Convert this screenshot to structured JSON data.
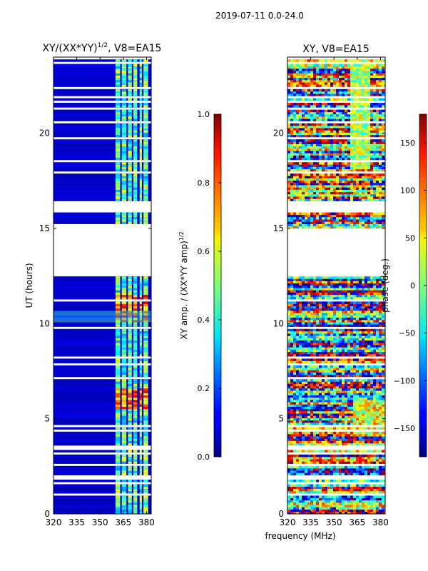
{
  "figure": {
    "suptitle": "2019-07-11 0.0-24.0",
    "xlabel": "frequency (MHz)",
    "ylabel": "UT (hours)"
  },
  "colors": {
    "background": "#ffffff",
    "frame": "#000000",
    "gap": "#ffffff"
  },
  "chart_data": [
    {
      "type": "heatmap",
      "title_prefix": "XY/(XX*YY)",
      "title_exp": "1/2",
      "title_suffix": ", V8=EA15",
      "xlim": [
        320,
        383
      ],
      "ylim": [
        0,
        24
      ],
      "xticks": [
        "320",
        "335",
        "350",
        "365",
        "380"
      ],
      "xtick_values": [
        320,
        335,
        350,
        365,
        380
      ],
      "yticks": [
        "0",
        "5",
        "10",
        "15",
        "20"
      ],
      "ytick_values": [
        0,
        5,
        10,
        15,
        20
      ],
      "colorbar": {
        "label_prefix": "XY amp. / (XX*YY amp)",
        "label_exp": "1/2",
        "range": [
          0,
          1
        ],
        "ticks": [
          "0.0",
          "0.2",
          "0.4",
          "0.6",
          "0.8",
          "1.0"
        ],
        "tick_values": [
          0,
          0.2,
          0.4,
          0.6,
          0.8,
          1.0
        ]
      },
      "data_gap_hours": [
        [
          12.4,
          15.0
        ],
        [
          15.8,
          16.1
        ],
        [
          14.99,
          15.2
        ]
      ],
      "rfi_bands_mhz": [
        [
          360,
          363
        ],
        [
          364,
          367
        ],
        [
          368,
          370.5
        ],
        [
          371.5,
          374
        ],
        [
          375.5,
          377
        ],
        [
          378,
          381
        ]
      ],
      "typical_value_clean": 0.05,
      "typical_value_rfi": 0.45
    },
    {
      "type": "heatmap",
      "title": "XY, V8=EA15",
      "xlim": [
        320,
        383
      ],
      "ylim": [
        0,
        24
      ],
      "xticks": [
        "320",
        "335",
        "350",
        "365",
        "380"
      ],
      "xtick_values": [
        320,
        335,
        350,
        365,
        380
      ],
      "yticks": [
        "0",
        "5",
        "10",
        "15",
        "20"
      ],
      "ytick_values": [
        0,
        5,
        10,
        15,
        20
      ],
      "colorbar": {
        "label": "phase (deg.)",
        "range": [
          -180,
          180
        ],
        "ticks": [
          "−150",
          "−100",
          "−50",
          "0",
          "50",
          "100",
          "150"
        ],
        "tick_values": [
          -150,
          -100,
          -50,
          0,
          50,
          100,
          150
        ]
      },
      "data_gap_hours": [
        [
          12.4,
          14.99
        ],
        [
          15.8,
          16.1
        ]
      ],
      "phase_range_deg": [
        -180,
        180
      ]
    }
  ]
}
